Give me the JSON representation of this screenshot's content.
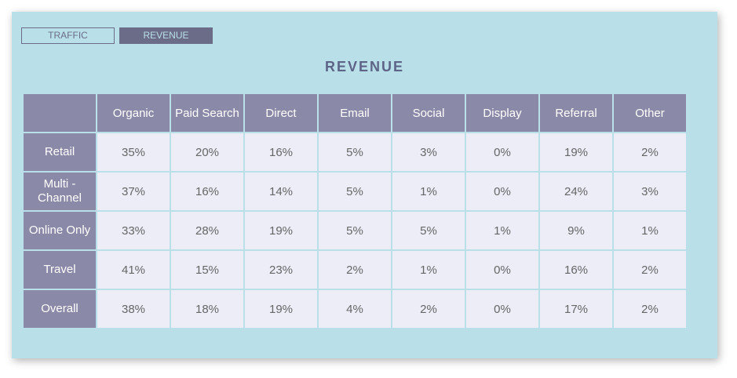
{
  "tabs": [
    {
      "label": "TRAFFIC",
      "active": false
    },
    {
      "label": "REVENUE",
      "active": true
    }
  ],
  "title": "REVENUE",
  "table": {
    "columns": [
      "",
      "Organic",
      "Paid Search",
      "Direct",
      "Email",
      "Social",
      "Display",
      "Referral",
      "Other"
    ],
    "rows": [
      {
        "label": "Retail",
        "values": [
          "35%",
          "20%",
          "16%",
          "5%",
          "3%",
          "0%",
          "19%",
          "2%"
        ]
      },
      {
        "label": "Multi - Channel",
        "values": [
          "37%",
          "16%",
          "14%",
          "5%",
          "1%",
          "0%",
          "24%",
          "3%"
        ]
      },
      {
        "label": "Online Only",
        "values": [
          "33%",
          "28%",
          "19%",
          "5%",
          "5%",
          "1%",
          "9%",
          "1%"
        ]
      },
      {
        "label": "Travel",
        "values": [
          "41%",
          "15%",
          "23%",
          "2%",
          "1%",
          "0%",
          "16%",
          "2%"
        ]
      },
      {
        "label": "Overall",
        "values": [
          "38%",
          "18%",
          "19%",
          "4%",
          "2%",
          "0%",
          "17%",
          "2%"
        ]
      }
    ]
  },
  "colors": {
    "panel": "#b9dfe8",
    "header": "#8a8aa8",
    "cell": "#ecedf7",
    "accent": "#6b6d88"
  }
}
